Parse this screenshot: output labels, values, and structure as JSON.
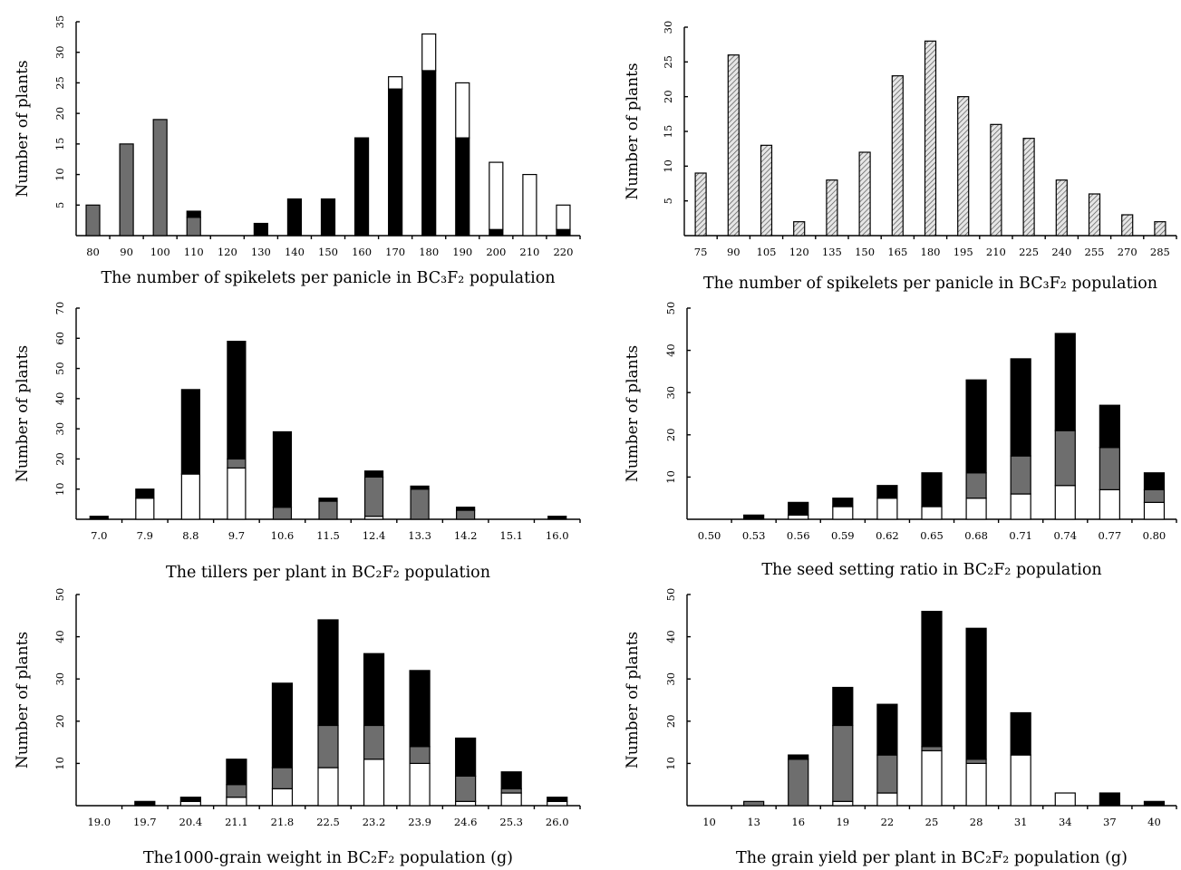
{
  "chart_data": [
    {
      "type": "bar",
      "stacked": true,
      "xlabel": "The number of spikelets per panicle in BC₃F₂ population",
      "ylabel": "Number of plants",
      "categories": [
        "80",
        "90",
        "100",
        "110",
        "120",
        "130",
        "140",
        "150",
        "160",
        "170",
        "180",
        "190",
        "200",
        "210",
        "220"
      ],
      "ylim": [
        0,
        35
      ],
      "yticks": [
        5,
        10,
        15,
        20,
        25,
        30,
        35
      ],
      "series": [
        {
          "color": "#6e6e6e",
          "values": [
            5,
            15,
            19,
            3,
            0,
            0,
            0,
            0,
            0,
            0,
            0,
            0,
            0,
            0,
            0
          ]
        },
        {
          "color": "#000000",
          "values": [
            0,
            0,
            0,
            1,
            0,
            2,
            6,
            6,
            16,
            24,
            27,
            16,
            1,
            0,
            1
          ]
        },
        {
          "color": "#ffffff",
          "values": [
            0,
            0,
            0,
            0,
            0,
            0,
            0,
            0,
            0,
            2,
            6,
            9,
            11,
            10,
            4
          ]
        }
      ]
    },
    {
      "type": "bar",
      "xlabel": "The number of spikelets per panicle in BC₃F₂ population",
      "ylabel": "Number of plants",
      "categories": [
        "75",
        "90",
        "105",
        "120",
        "135",
        "150",
        "165",
        "180",
        "195",
        "210",
        "225",
        "240",
        "255",
        "270",
        "285"
      ],
      "ylim": [
        0,
        30
      ],
      "yticks": [
        5,
        10,
        15,
        20,
        25,
        30
      ],
      "series": [
        {
          "color": "#c8c8c8",
          "pattern": "hatch",
          "values": [
            9,
            26,
            13,
            2,
            8,
            12,
            23,
            28,
            20,
            16,
            14,
            8,
            6,
            3,
            2
          ]
        }
      ]
    },
    {
      "type": "bar",
      "stacked": true,
      "xlabel": "The tillers per plant in BC₂F₂ population",
      "ylabel": "Number of plants",
      "categories": [
        "7.0",
        "7.9",
        "8.8",
        "9.7",
        "10.6",
        "11.5",
        "12.4",
        "13.3",
        "14.2",
        "15.1",
        "16.0"
      ],
      "ylim": [
        0,
        70
      ],
      "yticks": [
        10,
        20,
        30,
        40,
        50,
        60,
        70
      ],
      "series": [
        {
          "color": "#ffffff",
          "values": [
            0,
            7,
            15,
            17,
            0,
            0,
            1,
            0,
            0,
            0,
            0
          ]
        },
        {
          "color": "#6e6e6e",
          "values": [
            0,
            0,
            0,
            3,
            4,
            6,
            13,
            10,
            3,
            0,
            0
          ]
        },
        {
          "color": "#000000",
          "values": [
            1,
            3,
            28,
            39,
            25,
            1,
            2,
            1,
            1,
            0,
            1
          ]
        }
      ]
    },
    {
      "type": "bar",
      "stacked": true,
      "xlabel": "The seed setting ratio in BC₂F₂ population",
      "ylabel": "Number of plants",
      "categories": [
        "0.50",
        "0.53",
        "0.56",
        "0.59",
        "0.62",
        "0.65",
        "0.68",
        "0.71",
        "0.74",
        "0.77",
        "0.80"
      ],
      "ylim": [
        0,
        50
      ],
      "yticks": [
        10,
        20,
        30,
        40,
        50
      ],
      "series": [
        {
          "color": "#ffffff",
          "values": [
            0,
            0,
            1,
            3,
            5,
            3,
            5,
            6,
            8,
            7,
            4
          ]
        },
        {
          "color": "#6e6e6e",
          "values": [
            0,
            0,
            0,
            0,
            0,
            0,
            6,
            9,
            13,
            10,
            3
          ]
        },
        {
          "color": "#000000",
          "values": [
            0,
            1,
            3,
            2,
            3,
            8,
            22,
            23,
            23,
            10,
            4
          ]
        }
      ]
    },
    {
      "type": "bar",
      "stacked": true,
      "xlabel": "The1000-grain weight in BC₂F₂ population (g)",
      "ylabel": "Number of plants",
      "categories": [
        "19.0",
        "19.7",
        "20.4",
        "21.1",
        "21.8",
        "22.5",
        "23.2",
        "23.9",
        "24.6",
        "25.3",
        "26.0"
      ],
      "ylim": [
        0,
        50
      ],
      "yticks": [
        10,
        20,
        30,
        40,
        50
      ],
      "series": [
        {
          "color": "#ffffff",
          "values": [
            0,
            0,
            1,
            2,
            4,
            9,
            11,
            10,
            1,
            3,
            1
          ]
        },
        {
          "color": "#6e6e6e",
          "values": [
            0,
            0,
            0,
            3,
            5,
            10,
            8,
            4,
            6,
            1,
            0
          ]
        },
        {
          "color": "#000000",
          "values": [
            0,
            1,
            1,
            6,
            20,
            25,
            17,
            18,
            9,
            4,
            1
          ]
        }
      ]
    },
    {
      "type": "bar",
      "stacked": true,
      "xlabel": "The grain yield per plant in BC₂F₂ population (g)",
      "ylabel": "Number of plants",
      "categories": [
        "10",
        "13",
        "16",
        "19",
        "22",
        "25",
        "28",
        "31",
        "34",
        "37",
        "40"
      ],
      "ylim": [
        0,
        50
      ],
      "yticks": [
        10,
        20,
        30,
        40,
        50
      ],
      "series": [
        {
          "color": "#ffffff",
          "values": [
            0,
            0,
            0,
            1,
            3,
            13,
            10,
            12,
            3,
            0,
            0
          ]
        },
        {
          "color": "#6e6e6e",
          "values": [
            0,
            1,
            11,
            18,
            9,
            1,
            1,
            0,
            0,
            0,
            0
          ]
        },
        {
          "color": "#000000",
          "values": [
            0,
            0,
            1,
            9,
            12,
            32,
            31,
            10,
            0,
            3,
            1
          ]
        }
      ]
    }
  ]
}
